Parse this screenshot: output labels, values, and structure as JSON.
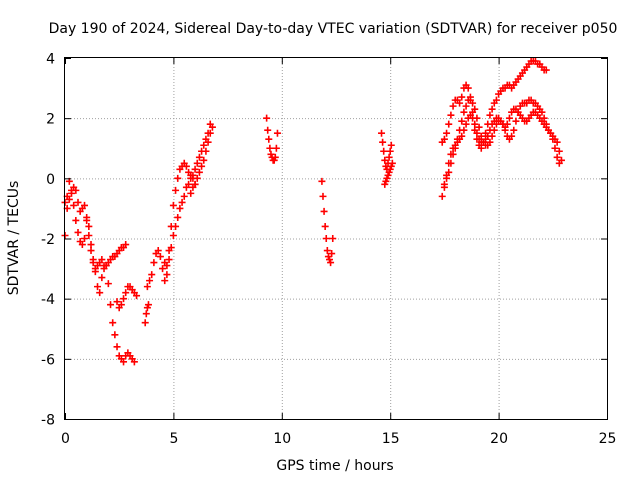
{
  "colors": {
    "series": "#ff0000",
    "grid": "#a0a0a0",
    "axis": "#000000",
    "background": "#ffffff"
  },
  "chart_data": {
    "type": "scatter",
    "title": "Day 190 of 2024, Sidereal Day-to-day VTEC variation (SDTVAR) for receiver p050",
    "xlabel": "GPS time / hours",
    "ylabel": "SDTVAR / TECUs",
    "xlim": [
      0,
      25
    ],
    "ylim": [
      -8,
      4
    ],
    "xticks": [
      0,
      5,
      10,
      15,
      20,
      25
    ],
    "yticks": [
      -8,
      -6,
      -4,
      -2,
      0,
      2,
      4
    ],
    "grid": true,
    "marker": "plus",
    "series": [
      {
        "name": "SDTVAR",
        "segments": [
          {
            "x": [
              0.0,
              0.1,
              0.2,
              0.3,
              0.4,
              0.5,
              0.6,
              0.7,
              0.8,
              0.9,
              1.0,
              1.1,
              1.2,
              1.3,
              1.4,
              1.5,
              1.6,
              1.7,
              1.8,
              1.9,
              2.0,
              2.1,
              2.2,
              2.3,
              2.4,
              2.5,
              2.6,
              2.7,
              2.8,
              2.9,
              3.0,
              3.1,
              3.2
            ],
            "y": [
              -1.9,
              -0.6,
              -0.1,
              -0.4,
              -0.9,
              -1.4,
              -1.8,
              -2.1,
              -2.2,
              -2.0,
              -1.4,
              -1.6,
              -2.2,
              -2.7,
              -3.1,
              -3.6,
              -3.8,
              -3.3,
              -3.0,
              -2.9,
              -3.5,
              -4.2,
              -4.8,
              -5.2,
              -5.6,
              -5.9,
              -6.0,
              -6.1,
              -5.9,
              -5.8,
              -5.9,
              -6.0,
              -6.1
            ]
          },
          {
            "x": [
              0.0,
              0.1,
              0.2,
              0.3,
              0.4,
              0.5,
              0.6,
              0.7,
              0.8,
              0.9,
              1.0,
              1.1,
              1.2,
              1.3,
              1.4,
              1.5,
              1.6,
              1.7,
              1.8,
              1.9,
              2.0,
              2.1,
              2.2,
              2.3,
              2.4,
              2.5,
              2.6,
              2.7,
              2.8
            ],
            "y": [
              -0.8,
              -1.0,
              -0.7,
              -0.5,
              -0.3,
              -0.4,
              -0.8,
              -1.1,
              -1.0,
              -0.9,
              -1.3,
              -1.9,
              -2.4,
              -2.8,
              -3.0,
              -2.9,
              -2.8,
              -2.7,
              -2.9,
              -2.9,
              -2.8,
              -2.7,
              -2.6,
              -2.6,
              -2.5,
              -2.4,
              -2.3,
              -2.3,
              -2.2
            ]
          },
          {
            "x": [
              2.4,
              2.5,
              2.6,
              2.7,
              2.8,
              2.9,
              3.0,
              3.1,
              3.2,
              3.3
            ],
            "y": [
              -4.1,
              -4.3,
              -4.2,
              -4.0,
              -3.8,
              -3.6,
              -3.6,
              -3.7,
              -3.8,
              -3.9
            ]
          },
          {
            "x": [
              3.7,
              3.75,
              3.8,
              3.85
            ],
            "y": [
              -4.8,
              -4.5,
              -4.3,
              -4.2
            ]
          },
          {
            "x": [
              3.8,
              3.9,
              4.0,
              4.1,
              4.2,
              4.3,
              4.4,
              4.5,
              4.6,
              4.7,
              4.8,
              4.9,
              5.0,
              5.1,
              5.2,
              5.3,
              5.4,
              5.5,
              5.6,
              5.7,
              5.8,
              5.9,
              6.0
            ],
            "y": [
              -3.6,
              -3.4,
              -3.2,
              -2.8,
              -2.5,
              -2.4,
              -2.6,
              -3.0,
              -3.4,
              -3.2,
              -2.4,
              -1.6,
              -0.9,
              -0.4,
              0.0,
              0.3,
              0.4,
              0.5,
              0.4,
              0.2,
              0.1,
              0.0,
              -0.2
            ]
          },
          {
            "x": [
              4.6,
              4.7,
              4.8,
              4.9,
              5.0,
              5.1,
              5.2,
              5.3,
              5.4,
              5.5,
              5.6,
              5.7,
              5.8,
              5.9,
              6.0,
              6.1,
              6.2,
              6.3,
              6.4,
              6.5,
              6.6,
              6.7
            ],
            "y": [
              -2.8,
              -2.9,
              -2.7,
              -2.3,
              -1.9,
              -1.6,
              -1.3,
              -1.0,
              -0.8,
              -0.6,
              -0.3,
              -0.2,
              0.0,
              0.1,
              0.3,
              0.5,
              0.7,
              0.9,
              1.1,
              1.3,
              1.5,
              1.8
            ]
          },
          {
            "x": [
              5.8,
              5.9,
              6.0,
              6.1,
              6.2,
              6.3,
              6.4,
              6.5,
              6.6,
              6.7,
              6.8
            ],
            "y": [
              -0.5,
              -0.3,
              -0.2,
              0.0,
              0.2,
              0.4,
              0.6,
              0.9,
              1.2,
              1.5,
              1.7
            ]
          },
          {
            "x": [
              9.3,
              9.35,
              9.4,
              9.45,
              9.5,
              9.55,
              9.6,
              9.65,
              9.7,
              9.75,
              9.8
            ],
            "y": [
              2.0,
              1.6,
              1.3,
              1.0,
              0.8,
              0.7,
              0.6,
              0.6,
              0.7,
              1.0,
              1.5
            ]
          },
          {
            "x": [
              11.85,
              11.9,
              11.95,
              12.0,
              12.05,
              12.1,
              12.15,
              12.2,
              12.25,
              12.3,
              12.35
            ],
            "y": [
              -0.1,
              -0.6,
              -1.1,
              -1.6,
              -2.0,
              -2.4,
              -2.6,
              -2.7,
              -2.8,
              -2.5,
              -2.0
            ]
          },
          {
            "x": [
              14.6,
              14.65,
              14.7,
              14.75,
              14.8,
              14.85,
              14.9,
              14.95,
              15.0,
              15.05
            ],
            "y": [
              1.5,
              1.2,
              0.9,
              0.6,
              0.4,
              0.3,
              0.5,
              0.7,
              0.9,
              1.1
            ]
          },
          {
            "x": [
              14.75,
              14.8,
              14.85,
              14.9,
              14.95,
              15.0,
              15.05,
              15.1
            ],
            "y": [
              -0.2,
              -0.1,
              0.0,
              0.1,
              0.2,
              0.3,
              0.4,
              0.5
            ]
          },
          {
            "x": [
              17.4,
              17.5,
              17.6,
              17.7,
              17.8,
              17.9,
              18.0,
              18.1,
              18.2,
              18.3,
              18.4,
              18.5,
              18.6,
              18.7,
              18.8,
              18.9,
              19.0,
              19.1,
              19.2,
              19.3,
              19.4,
              19.5,
              19.6,
              19.7,
              19.8,
              19.9,
              20.0,
              20.1,
              20.2,
              20.3,
              20.4,
              20.5,
              20.6,
              20.7,
              20.8,
              20.9,
              21.0,
              21.1,
              21.2,
              21.3,
              21.4,
              21.5,
              21.6,
              21.7,
              21.8,
              21.9,
              22.0,
              22.1,
              22.2
            ],
            "y": [
              1.2,
              1.3,
              1.5,
              1.8,
              2.1,
              2.4,
              2.6,
              2.6,
              2.5,
              2.7,
              3.0,
              3.1,
              3.0,
              2.7,
              2.2,
              1.6,
              1.3,
              1.1,
              1.0,
              1.2,
              1.5,
              1.8,
              2.1,
              2.3,
              2.5,
              2.6,
              2.8,
              2.9,
              3.0,
              3.0,
              3.1,
              3.1,
              3.0,
              3.1,
              3.2,
              3.3,
              3.4,
              3.5,
              3.6,
              3.7,
              3.8,
              3.9,
              3.9,
              3.9,
              3.8,
              3.8,
              3.7,
              3.6,
              3.6
            ]
          },
          {
            "x": [
              17.4,
              17.5,
              17.6,
              17.7,
              17.8,
              17.9,
              18.0,
              18.1,
              18.2,
              18.3,
              18.4,
              18.5,
              18.6,
              18.7,
              18.8,
              18.9,
              19.0,
              19.1,
              19.2,
              19.3,
              19.4,
              19.5,
              19.6,
              19.7,
              19.8,
              19.9,
              20.0,
              20.1,
              20.2,
              20.3,
              20.4,
              20.5,
              20.6,
              20.7,
              20.8,
              20.9,
              21.0,
              21.1,
              21.2,
              21.3,
              21.4,
              21.5,
              21.6,
              21.7,
              21.8,
              21.9,
              22.0,
              22.1,
              22.2,
              22.3,
              22.4,
              22.5,
              22.6,
              22.7,
              22.8
            ],
            "y": [
              -0.6,
              -0.3,
              0.1,
              0.5,
              0.8,
              1.0,
              1.1,
              1.2,
              1.3,
              1.4,
              1.6,
              1.8,
              2.0,
              2.1,
              2.0,
              1.8,
              1.5,
              1.3,
              1.2,
              1.2,
              1.3,
              1.4,
              1.6,
              1.8,
              1.9,
              2.0,
              2.0,
              1.9,
              1.8,
              1.7,
              1.8,
              2.0,
              2.2,
              2.3,
              2.3,
              2.2,
              2.1,
              2.0,
              1.9,
              1.9,
              2.0,
              2.1,
              2.2,
              2.2,
              2.1,
              2.0,
              1.9,
              1.8,
              1.7,
              1.6,
              1.5,
              1.3,
              1.0,
              0.7,
              0.5
            ]
          },
          {
            "x": [
              17.5,
              17.6,
              17.7,
              17.8,
              17.9,
              18.0,
              18.1,
              18.2,
              18.3,
              18.4,
              18.5,
              18.6,
              18.7,
              18.8,
              18.9,
              19.0,
              19.1,
              19.2,
              19.3,
              19.4,
              19.5,
              19.6,
              19.7,
              19.8,
              19.9,
              20.0,
              20.1,
              20.2,
              20.3,
              20.4,
              20.5,
              20.6,
              20.7,
              20.8,
              20.9,
              21.0,
              21.1,
              21.2,
              21.3,
              21.4,
              21.5,
              21.6,
              21.7,
              21.8,
              21.9,
              22.0,
              22.1,
              22.2,
              22.3,
              22.4,
              22.5,
              22.6,
              22.7,
              22.8,
              22.9
            ],
            "y": [
              -0.2,
              0.0,
              0.2,
              0.5,
              0.8,
              1.0,
              1.3,
              1.6,
              1.9,
              2.2,
              2.4,
              2.6,
              2.6,
              2.5,
              2.3,
              2.0,
              1.7,
              1.4,
              1.2,
              1.1,
              1.1,
              1.2,
              1.4,
              1.6,
              1.8,
              1.9,
              1.9,
              1.8,
              1.6,
              1.4,
              1.3,
              1.4,
              1.6,
              1.9,
              2.2,
              2.4,
              2.5,
              2.5,
              2.5,
              2.6,
              2.6,
              2.5,
              2.5,
              2.4,
              2.3,
              2.2,
              2.0,
              1.8,
              1.6,
              1.5,
              1.4,
              1.3,
              1.2,
              0.9,
              0.6
            ]
          }
        ]
      }
    ]
  }
}
